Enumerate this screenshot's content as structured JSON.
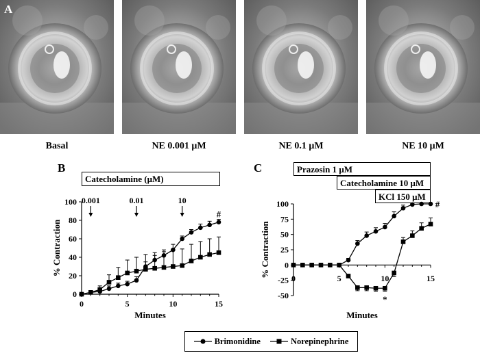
{
  "panel_a": {
    "letter": "A",
    "captions": [
      "Basal",
      "NE 0.001 μM",
      "NE 0.1 μM",
      "NE 10 μM"
    ]
  },
  "panel_b": {
    "letter": "B",
    "box_label": "Catecholamine (μM)",
    "arrow_labels": [
      "0.001",
      "0.01",
      "10"
    ],
    "ylabel": "% Contraction",
    "xlabel": "Minutes",
    "significance": "#"
  },
  "panel_c": {
    "letter": "C",
    "box_labels": [
      "Prazosin 1 μM",
      "Catecholamine 10 μM",
      "KCl 150 μM"
    ],
    "ylabel": "% Contraction",
    "xlabel": "Minutes",
    "significance_hash": "#",
    "significance_star": "*"
  },
  "legend": {
    "brimonidine": "Brimonidine",
    "norepinephrine": "Norepinephrine"
  },
  "chart_data": [
    {
      "type": "line",
      "panel": "B",
      "xlabel": "Minutes",
      "ylabel": "% Contraction",
      "xlim": [
        0,
        15
      ],
      "ylim": [
        0,
        100
      ],
      "xticks": [
        0,
        5,
        10,
        15
      ],
      "yticks": [
        0,
        20,
        40,
        60,
        80,
        100
      ],
      "arrows_at_x": [
        1,
        6,
        11
      ],
      "series": [
        {
          "name": "Brimonidine",
          "marker": "circle",
          "x": [
            0,
            1,
            2,
            3,
            4,
            5,
            6,
            7,
            8,
            9,
            10,
            11,
            12,
            13,
            14,
            15
          ],
          "y": [
            0,
            2,
            3,
            6,
            9,
            11,
            15,
            30,
            37,
            42,
            48,
            60,
            67,
            72,
            75,
            78
          ],
          "err": [
            0,
            1,
            2,
            3,
            3,
            3,
            4,
            5,
            5,
            6,
            6,
            3,
            3,
            4,
            4,
            3
          ]
        },
        {
          "name": "Norepinephrine",
          "marker": "square",
          "x": [
            0,
            1,
            2,
            3,
            4,
            5,
            6,
            7,
            8,
            9,
            10,
            11,
            12,
            13,
            14,
            15
          ],
          "y": [
            0,
            2,
            5,
            13,
            18,
            23,
            25,
            27,
            28,
            29,
            30,
            31,
            36,
            40,
            43,
            45
          ],
          "err": [
            0,
            1,
            4,
            8,
            11,
            14,
            15,
            16,
            17,
            17,
            18,
            18,
            18,
            17,
            17,
            17
          ]
        }
      ]
    },
    {
      "type": "line",
      "panel": "C",
      "xlabel": "Minutes",
      "ylabel": "% Contraction",
      "xlim": [
        0,
        15
      ],
      "ylim": [
        -50,
        100
      ],
      "xticks": [
        0,
        5,
        10,
        15
      ],
      "yticks": [
        -50,
        -25,
        0,
        25,
        50,
        75,
        100
      ],
      "series": [
        {
          "name": "Brimonidine",
          "marker": "circle",
          "x": [
            0,
            1,
            2,
            3,
            4,
            5,
            6,
            7,
            8,
            9,
            10,
            11,
            12,
            13,
            14,
            15
          ],
          "y": [
            0,
            0,
            0,
            0,
            0,
            0,
            8,
            35,
            48,
            55,
            62,
            80,
            93,
            99,
            100,
            100
          ],
          "err": [
            0,
            0,
            0,
            0,
            0,
            0,
            3,
            5,
            6,
            6,
            6,
            7,
            5,
            2,
            1,
            0
          ]
        },
        {
          "name": "Norepinephrine",
          "marker": "square",
          "x": [
            0,
            1,
            2,
            3,
            4,
            5,
            6,
            7,
            8,
            9,
            10,
            11,
            12,
            13,
            14,
            15
          ],
          "y": [
            0,
            0,
            0,
            0,
            0,
            0,
            -18,
            -37,
            -37,
            -38,
            -38,
            -13,
            38,
            48,
            60,
            67
          ],
          "err": [
            0,
            0,
            0,
            0,
            0,
            0,
            3,
            5,
            5,
            5,
            5,
            6,
            7,
            8,
            9,
            10
          ]
        }
      ]
    }
  ]
}
